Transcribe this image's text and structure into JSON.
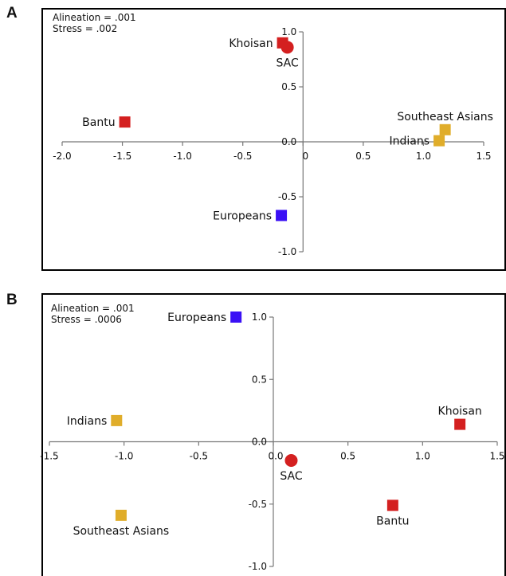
{
  "panels": [
    {
      "letter": "A",
      "stats": [
        "Alineation = .001",
        "Stress = .002"
      ]
    },
    {
      "letter": "B",
      "stats": [
        "Alineation = .001",
        "Stress = .0006"
      ]
    }
  ],
  "colors": {
    "red": "#d42020",
    "gold": "#e0ad2a",
    "blue": "#3a10f5",
    "axis": "#777777",
    "text": "#111111"
  },
  "chart_data": [
    {
      "type": "scatter",
      "title": "",
      "xlabel": "",
      "ylabel": "",
      "xlim": [
        -2.0,
        1.5
      ],
      "ylim": [
        -1.0,
        1.0
      ],
      "xticks": [
        "-2.0",
        "-1.5",
        "-1.0",
        "-0.5",
        "0",
        "0.5",
        "1.0",
        "1.5"
      ],
      "xtick_values": [
        -2.0,
        -1.5,
        -1.0,
        -0.5,
        0,
        0.5,
        1.0,
        1.5
      ],
      "yticks": [
        "1.0",
        "0.5",
        "0.0",
        "-0.5",
        "-1.0"
      ],
      "ytick_values": [
        1.0,
        0.5,
        0.0,
        -0.5,
        -1.0
      ],
      "grid": false,
      "points": [
        {
          "label": "Khoisan",
          "x": -0.17,
          "y": 0.9,
          "color": "red",
          "marker": "square",
          "label_pos": "left"
        },
        {
          "label": "SAC",
          "x": -0.13,
          "y": 0.86,
          "color": "red",
          "marker": "circle",
          "label_pos": "below"
        },
        {
          "label": "Bantu",
          "x": -1.48,
          "y": 0.18,
          "color": "red",
          "marker": "square",
          "label_pos": "left"
        },
        {
          "label": "Southeast Asians",
          "x": 1.18,
          "y": 0.11,
          "color": "gold",
          "marker": "square",
          "label_pos": "above"
        },
        {
          "label": "Indians",
          "x": 1.13,
          "y": 0.01,
          "color": "gold",
          "marker": "square",
          "label_pos": "left"
        },
        {
          "label": "Europeans",
          "x": -0.18,
          "y": -0.67,
          "color": "blue",
          "marker": "square",
          "label_pos": "left"
        }
      ]
    },
    {
      "type": "scatter",
      "title": "",
      "xlabel": "",
      "ylabel": "",
      "xlim": [
        -1.5,
        1.5
      ],
      "ylim": [
        -1.0,
        1.0
      ],
      "xticks": [
        "-1.5",
        "-1.0",
        "-0.5",
        "0.0",
        "0.5",
        "1.0",
        "1.5"
      ],
      "xtick_values": [
        -1.5,
        -1.0,
        -0.5,
        0.0,
        0.5,
        1.0,
        1.5
      ],
      "yticks": [
        "1.0",
        "0.5",
        "0.0",
        "-0.5",
        "-1.0"
      ],
      "ytick_values": [
        1.0,
        0.5,
        0.0,
        -0.5,
        -1.0
      ],
      "grid": false,
      "points": [
        {
          "label": "Europeans",
          "x": -0.25,
          "y": 1.0,
          "color": "blue",
          "marker": "square",
          "label_pos": "left"
        },
        {
          "label": "Indians",
          "x": -1.05,
          "y": 0.17,
          "color": "gold",
          "marker": "square",
          "label_pos": "left"
        },
        {
          "label": "Khoisan",
          "x": 1.25,
          "y": 0.14,
          "color": "red",
          "marker": "square",
          "label_pos": "above"
        },
        {
          "label": "SAC",
          "x": 0.12,
          "y": -0.15,
          "color": "red",
          "marker": "circle",
          "label_pos": "below"
        },
        {
          "label": "Southeast Asians",
          "x": -1.02,
          "y": -0.59,
          "color": "gold",
          "marker": "square",
          "label_pos": "below"
        },
        {
          "label": "Bantu",
          "x": 0.8,
          "y": -0.51,
          "color": "red",
          "marker": "square",
          "label_pos": "below"
        }
      ]
    }
  ]
}
